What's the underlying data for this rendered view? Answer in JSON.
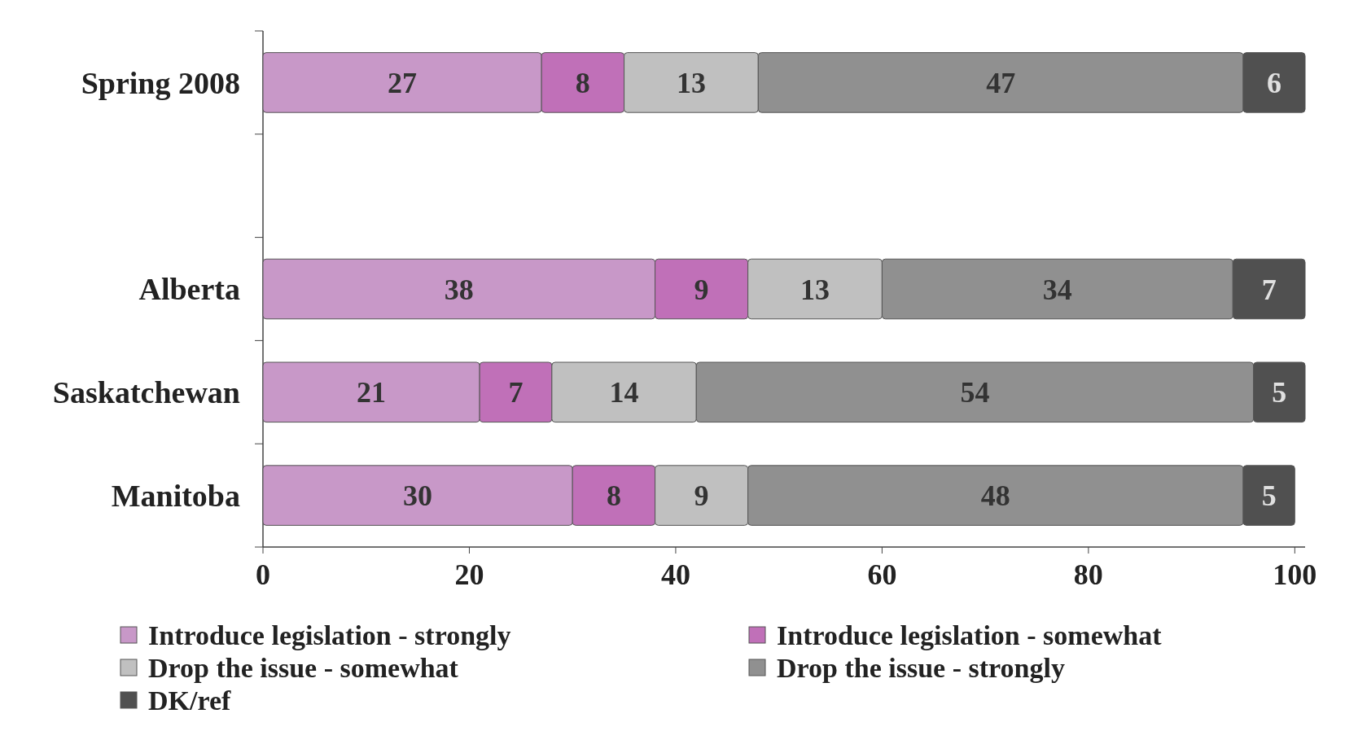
{
  "chart_data": {
    "type": "bar",
    "orientation": "horizontal",
    "stacked": true,
    "data_labels": true,
    "legend": "bottom",
    "categories": [
      "Spring 2008",
      null,
      "Alberta",
      "Saskatchewan",
      "Manitoba"
    ],
    "xlim": [
      0,
      101
    ],
    "xticks": [
      0,
      20,
      40,
      60,
      80,
      100
    ],
    "series": [
      {
        "name": "Introduce legislation - strongly",
        "color": "#c898c8",
        "values": [
          27,
          null,
          38,
          21,
          30
        ]
      },
      {
        "name": "Introduce legislation - somewhat",
        "color": "#c070b8",
        "values": [
          8,
          null,
          9,
          7,
          8
        ]
      },
      {
        "name": "Drop the issue - somewhat",
        "color": "#c0c0c0",
        "values": [
          13,
          null,
          13,
          14,
          9
        ]
      },
      {
        "name": "Drop the issue - strongly",
        "color": "#909090",
        "values": [
          47,
          null,
          34,
          54,
          48
        ]
      },
      {
        "name": "DK/ref",
        "color": "#505050",
        "values": [
          6,
          null,
          7,
          5,
          5
        ]
      }
    ]
  }
}
